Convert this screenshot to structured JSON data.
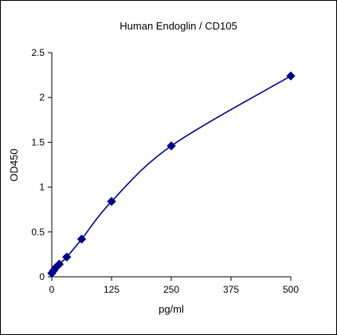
{
  "chart_data": {
    "type": "line",
    "title": "Human Endoglin / CD105",
    "xlabel": "pg/ml",
    "ylabel": "OD450",
    "xlim": [
      0,
      500
    ],
    "ylim": [
      0,
      2.5
    ],
    "x_ticks": [
      0,
      125,
      250,
      375,
      500
    ],
    "x_tick_labels": [
      "0",
      "125",
      "250",
      "375",
      "500"
    ],
    "y_ticks": [
      0,
      0.5,
      1,
      1.5,
      2,
      2.5
    ],
    "y_tick_labels": [
      "0",
      "0.5",
      "1",
      "1.5",
      "2",
      "2.5"
    ],
    "grid": false,
    "legend": "none",
    "series": [
      {
        "marker": "diamond",
        "color": "#00008B",
        "x": [
          0,
          3.9,
          7.8,
          15.6,
          31.25,
          62.5,
          125,
          250,
          500
        ],
        "y": [
          0.04,
          0.07,
          0.1,
          0.14,
          0.22,
          0.42,
          0.84,
          1.46,
          2.24
        ]
      }
    ]
  }
}
